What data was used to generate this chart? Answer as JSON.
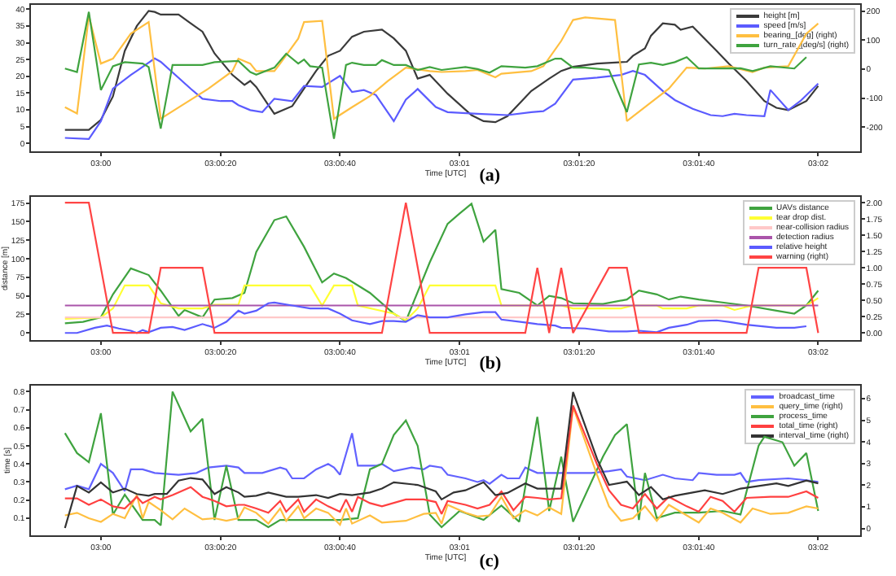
{
  "chart_data": [
    {
      "type": "line",
      "title": "(a)",
      "xlabel": "Time [UTC]",
      "legend": "top right",
      "xlim": [
        2.99675,
        3.03528
      ],
      "xticks": [
        {
          "value": 3,
          "label": "03:00"
        },
        {
          "value": 3.00556,
          "label": "03:00:20"
        },
        {
          "value": 3.01111,
          "label": "03:00:40"
        },
        {
          "value": 3.01667,
          "label": "03:01"
        },
        {
          "value": 3.02222,
          "label": "03:01:20"
        },
        {
          "value": 3.02778,
          "label": "03:01:40"
        },
        {
          "value": 3.03333,
          "label": "03:02"
        }
      ],
      "ylim": [
        -2.4,
        41.3
      ],
      "yticks": [
        0,
        5,
        10,
        15,
        20,
        25,
        30,
        35,
        40
      ],
      "y2lim": [
        -283,
        221
      ],
      "y2ticks": [
        -200,
        -100,
        0,
        100,
        200
      ],
      "series": [
        {
          "name": "height [m]",
          "color": "#3a3a3a",
          "x": [
            2.99833,
            2.99944,
            3,
            3.00056,
            3.00111,
            3.00167,
            3.00222,
            3.0025,
            3.00278,
            3.00361,
            3.00417,
            3.00472,
            3.00528,
            3.00611,
            3.00667,
            3.00694,
            3.00722,
            3.00778,
            3.00806,
            3.00889,
            3.00944,
            3.01,
            3.01056,
            3.01111,
            3.01167,
            3.01222,
            3.01306,
            3.01361,
            3.01417,
            3.01472,
            3.01528,
            3.01611,
            3.01722,
            3.01778,
            3.01833,
            3.01889,
            3.02,
            3.02083,
            3.02139,
            3.02194,
            3.02306,
            3.02444,
            3.02472,
            3.02528,
            3.02556,
            3.02611,
            3.02667,
            3.02694,
            3.0275,
            3.02861,
            3.02917,
            3.03,
            3.03083,
            3.03139,
            3.03194,
            3.03278,
            3.03333
          ],
          "values": [
            4.0,
            4.0,
            7,
            14,
            27.6,
            35,
            39.5,
            39.2,
            38.4,
            38.4,
            35.8,
            33.3,
            26.8,
            20.4,
            17.4,
            18.6,
            16.8,
            11.4,
            8.8,
            11.1,
            16.3,
            21.6,
            26.1,
            27.6,
            31.8,
            33.3,
            33.9,
            31.3,
            27.6,
            19.3,
            20.4,
            14.8,
            8.4,
            6.6,
            6.3,
            8.1,
            15.6,
            19.3,
            21.6,
            22.8,
            23.8,
            24.3,
            26.1,
            28.3,
            32.1,
            35.8,
            35.4,
            33.9,
            34.8,
            27.6,
            23.8,
            18.6,
            12.6,
            10.6,
            9.9,
            12.6,
            17.1
          ]
        },
        {
          "name": "speed [m/s]",
          "color": "#5b5bff",
          "x": [
            2.99833,
            2.99944,
            3,
            3.00056,
            3.00139,
            3.00167,
            3.0025,
            3.00278,
            3.00417,
            3.00472,
            3.00556,
            3.00611,
            3.00639,
            3.00694,
            3.0075,
            3.00806,
            3.00889,
            3.00944,
            3.01028,
            3.01111,
            3.01167,
            3.01222,
            3.01278,
            3.01361,
            3.01417,
            3.01472,
            3.01556,
            3.01611,
            3.0175,
            3.01889,
            3.02,
            3.02056,
            3.02111,
            3.02194,
            3.02306,
            3.02417,
            3.02472,
            3.02528,
            3.02611,
            3.02667,
            3.0275,
            3.02833,
            3.02889,
            3.02944,
            3.03,
            3.03083,
            3.03111,
            3.03194,
            3.0325,
            3.03333
          ],
          "values": [
            1.6,
            1.3,
            6.6,
            16.3,
            20.4,
            21.6,
            25.3,
            24.3,
            16.3,
            13.3,
            12.6,
            12.6,
            11.4,
            9.9,
            9.3,
            13.3,
            12.6,
            17.1,
            16.8,
            20.1,
            15.3,
            15.9,
            14.4,
            6.6,
            13.0,
            16.2,
            10.8,
            9.3,
            8.8,
            8.4,
            9.3,
            9.6,
            11.8,
            19.0,
            19.6,
            20.4,
            21.6,
            20.4,
            15.6,
            12.9,
            10.3,
            8.4,
            8.1,
            8.8,
            8.4,
            8.1,
            15.9,
            9.9,
            12.6,
            17.8
          ]
        },
        {
          "name": "bearing_[deg] (right)",
          "color": "#ffbf40",
          "axis": "y2",
          "x": [
            2.99833,
            2.99889,
            2.99944,
            3,
            3.00056,
            3.00139,
            3.00222,
            3.00278,
            3.00389,
            3.005,
            3.00611,
            3.00639,
            3.00694,
            3.00722,
            3.00806,
            3.00833,
            3.00917,
            3.00944,
            3.01028,
            3.01083,
            3.01167,
            3.0125,
            3.01333,
            3.01417,
            3.01528,
            3.01583,
            3.01694,
            3.0175,
            3.01833,
            3.01861,
            3.02,
            3.02056,
            3.02139,
            3.02194,
            3.0225,
            3.02389,
            3.02444,
            3.02528,
            3.02639,
            3.02722,
            3.02806,
            3.02917,
            3.03028,
            3.03083,
            3.03194,
            3.03278,
            3.03333
          ],
          "values": [
            -131,
            -153,
            183,
            19,
            36,
            122,
            162,
            -171,
            -119,
            -67,
            -7,
            36,
            19,
            -7,
            -7,
            19,
            105,
            162,
            166,
            -171,
            -131,
            -93,
            -41,
            5,
            -7,
            -10,
            -7,
            -3,
            -28,
            -16,
            -7,
            10,
            97,
            169,
            178,
            169,
            -179,
            -131,
            -67,
            5,
            2,
            10,
            -10,
            5,
            10,
            122,
            157
          ]
        },
        {
          "name": "turn_rate_[deg/s] (right)",
          "color": "#3fa33f",
          "axis": "y2",
          "x": [
            2.99833,
            2.99889,
            2.99944,
            3,
            3.00056,
            3.00111,
            3.00194,
            3.00222,
            3.00278,
            3.00333,
            3.00472,
            3.00528,
            3.00639,
            3.00694,
            3.00722,
            3.00806,
            3.00861,
            3.00917,
            3.00944,
            3.00972,
            3.01028,
            3.01083,
            3.01139,
            3.01167,
            3.01222,
            3.01278,
            3.01306,
            3.01361,
            3.01417,
            3.01472,
            3.01528,
            3.01583,
            3.01694,
            3.0175,
            3.01806,
            3.01861,
            3.01972,
            3.02028,
            3.02111,
            3.02139,
            3.02194,
            3.0225,
            3.02361,
            3.02444,
            3.025,
            3.02556,
            3.02611,
            3.02667,
            3.02722,
            3.02778,
            3.02889,
            3.02972,
            3.03028,
            3.03111,
            3.03222,
            3.03278
          ],
          "values": [
            2,
            -10,
            197,
            -72,
            10,
            24,
            19,
            7,
            -205,
            14,
            14,
            24,
            28,
            -10,
            -19,
            5,
            53,
            19,
            33,
            10,
            5,
            -240,
            14,
            22,
            14,
            14,
            31,
            14,
            14,
            -3,
            7,
            -3,
            7,
            0,
            -12,
            10,
            5,
            10,
            36,
            36,
            5,
            5,
            -3,
            -148,
            16,
            22,
            14,
            24,
            41,
            2,
            2,
            3,
            -7,
            10,
            2,
            41
          ]
        }
      ]
    },
    {
      "type": "line",
      "title": "(b)",
      "xlabel": "Time [UTC]",
      "ylabel": "distance [m]",
      "legend": "top right",
      "xlim": [
        2.99675,
        3.03528
      ],
      "xticks": [
        {
          "value": 3,
          "label": "03:00"
        },
        {
          "value": 3.00556,
          "label": "03:00:20"
        },
        {
          "value": 3.01111,
          "label": "03:00:40"
        },
        {
          "value": 3.01667,
          "label": "03:01"
        },
        {
          "value": 3.02222,
          "label": "03:01:20"
        },
        {
          "value": 3.02778,
          "label": "03:01:40"
        },
        {
          "value": 3.03333,
          "label": "03:02"
        }
      ],
      "ylim": [
        -9.6,
        183.3
      ],
      "yticks": [
        0,
        25,
        50,
        75,
        100,
        125,
        150,
        175
      ],
      "y2lim": [
        -0.11,
        2.09
      ],
      "y2ticks": [
        {
          "value": 0,
          "label": "0.00"
        },
        {
          "value": 0.25,
          "label": "0.25"
        },
        {
          "value": 0.5,
          "label": "0.50"
        },
        {
          "value": 0.75,
          "label": "0.75"
        },
        {
          "value": 1,
          "label": "1.00"
        },
        {
          "value": 1.25,
          "label": "1.25"
        },
        {
          "value": 1.5,
          "label": "1.50"
        },
        {
          "value": 1.75,
          "label": "1.75"
        },
        {
          "value": 2,
          "label": "2.00"
        }
      ],
      "series": [
        {
          "name": "UAVs distance",
          "color": "#3fa33f",
          "x": [
            2.99833,
            2.99917,
            3,
            3.00056,
            3.00139,
            3.00222,
            3.00278,
            3.00361,
            3.00389,
            3.00472,
            3.00528,
            3.00611,
            3.00667,
            3.00722,
            3.00806,
            3.00861,
            3.00944,
            3.01028,
            3.01083,
            3.01139,
            3.0125,
            3.01361,
            3.01417,
            3.01528,
            3.01611,
            3.01667,
            3.01722,
            3.01778,
            3.01833,
            3.01861,
            3.01944,
            3.02028,
            3.02083,
            3.02139,
            3.02194,
            3.02333,
            3.02444,
            3.025,
            3.02583,
            3.02639,
            3.02694,
            3.02778,
            3.02917,
            3.03,
            3.03139,
            3.03222,
            3.03278,
            3.03333
          ],
          "values": [
            13,
            15,
            21,
            52,
            87,
            78,
            57,
            23,
            31,
            21,
            45,
            47,
            54,
            109,
            152,
            157,
            116,
            68,
            80,
            74,
            54,
            26,
            16,
            95,
            147,
            161,
            174,
            123,
            139,
            59,
            54,
            37,
            50,
            47,
            40,
            39,
            45,
            57,
            52,
            45,
            49,
            45,
            40,
            37,
            30,
            26,
            37,
            57
          ]
        },
        {
          "name": "tear drop dist.",
          "color": "#ffff33",
          "x": [
            2.99833,
            3,
            3.00056,
            3.00111,
            3.00222,
            3.00278,
            3.00361,
            3.00472,
            3.00528,
            3.00639,
            3.00667,
            3.00972,
            3.01028,
            3.01083,
            3.01167,
            3.01194,
            3.01361,
            3.01417,
            3.01472,
            3.01528,
            3.01833,
            3.01861,
            3.02139,
            3.02194,
            3.02417,
            3.02472,
            3.02583,
            3.02611,
            3.02722,
            3.02778,
            3.02889,
            3.02944,
            3.03028,
            3.03278,
            3.03333
          ],
          "values": [
            19,
            21,
            33,
            64,
            64,
            40,
            33,
            33,
            38,
            38,
            64,
            64,
            37,
            64,
            64,
            37,
            26,
            17,
            33,
            64,
            64,
            37,
            37,
            33,
            33,
            37,
            37,
            33,
            33,
            37,
            37,
            31,
            37,
            37,
            47
          ]
        },
        {
          "name": "near-collision radius",
          "color": "#ffc8c8",
          "x": [
            2.99833,
            3.03333
          ],
          "values": [
            21,
            21
          ]
        },
        {
          "name": "detection radius",
          "color": "#aa55aa",
          "x": [
            2.99833,
            3.03333
          ],
          "values": [
            37,
            37
          ]
        },
        {
          "name": "relative height",
          "color": "#5b5bff",
          "x": [
            2.99833,
            2.99889,
            2.99972,
            3.00028,
            3.00083,
            3.00139,
            3.00167,
            3.00194,
            3.00222,
            3.00278,
            3.00333,
            3.00389,
            3.00472,
            3.00528,
            3.00583,
            3.00639,
            3.00667,
            3.00722,
            3.00778,
            3.00806,
            3.00889,
            3.00972,
            3.01056,
            3.01111,
            3.01167,
            3.0125,
            3.01306,
            3.01361,
            3.01417,
            3.01472,
            3.01528,
            3.01611,
            3.01694,
            3.01778,
            3.01833,
            3.01861,
            3.01972,
            3.02028,
            3.02111,
            3.02139,
            3.0225,
            3.02361,
            3.02444,
            3.025,
            3.02583,
            3.02639,
            3.02722,
            3.02778,
            3.02861,
            3.02917,
            3.03,
            3.03139,
            3.03222,
            3.03278
          ],
          "values": [
            0,
            0,
            7,
            10,
            6,
            3,
            0,
            4,
            1,
            7,
            8,
            4,
            12,
            7,
            15,
            30,
            26,
            30,
            40,
            41,
            37,
            33,
            33,
            26,
            17,
            12,
            16,
            16,
            15,
            24,
            21,
            21,
            25,
            28,
            28,
            18,
            14,
            12,
            10,
            7,
            6,
            2,
            2,
            3,
            1,
            7,
            11,
            16,
            17,
            15,
            11,
            7,
            7,
            9
          ]
        },
        {
          "name": "warning (right)",
          "color": "#ff4444",
          "axis": "y2",
          "x": [
            2.99833,
            2.99944,
            3.00056,
            3.00222,
            3.00278,
            3.00472,
            3.00528,
            3.01306,
            3.01417,
            3.01528,
            3.01972,
            3.02028,
            3.02083,
            3.02139,
            3.02194,
            3.02361,
            3.02444,
            3.025,
            3.03,
            3.03056,
            3.03278,
            3.03333
          ],
          "values": [
            2,
            2,
            0,
            0,
            1,
            1,
            0,
            0,
            2,
            0,
            0,
            1,
            0,
            1,
            0,
            1,
            1,
            0,
            0,
            1,
            1,
            0
          ]
        }
      ]
    },
    {
      "type": "line",
      "title": "(c)",
      "xlabel": "Time [UTC]",
      "ylabel": "time [s]",
      "legend": "top right",
      "xlim": [
        2.99675,
        3.03528
      ],
      "xticks": [
        {
          "value": 3,
          "label": "03:00"
        },
        {
          "value": 3.00556,
          "label": "03:00:20"
        },
        {
          "value": 3.01111,
          "label": "03:00:40"
        },
        {
          "value": 3.01667,
          "label": "03:01"
        },
        {
          "value": 3.02222,
          "label": "03:01:20"
        },
        {
          "value": 3.02778,
          "label": "03:01:40"
        },
        {
          "value": 3.03333,
          "label": "03:02"
        }
      ],
      "ylim": [
        0.005,
        0.833
      ],
      "yticks": [
        0.1,
        0.2,
        0.3,
        0.4,
        0.5,
        0.6,
        0.7,
        0.8
      ],
      "y2lim": [
        -0.32,
        6.6
      ],
      "y2ticks": [
        0,
        1,
        2,
        3,
        4,
        5,
        6
      ],
      "series": [
        {
          "name": "broadcast_time",
          "color": "#6262ff",
          "x": [
            2.99833,
            2.99889,
            2.99944,
            3,
            3.00056,
            3.00111,
            3.00139,
            3.00194,
            3.0025,
            3.00361,
            3.00444,
            3.005,
            3.00583,
            3.00639,
            3.00667,
            3.0075,
            3.00833,
            3.00861,
            3.00889,
            3.00944,
            3.01,
            3.01056,
            3.01083,
            3.01111,
            3.01167,
            3.01194,
            3.01278,
            3.01306,
            3.01361,
            3.01444,
            3.015,
            3.01528,
            3.01583,
            3.01611,
            3.01694,
            3.0175,
            3.01778,
            3.01806,
            3.01861,
            3.01889,
            3.01944,
            3.01972,
            3.02028,
            3.02139,
            3.02278,
            3.02361,
            3.02417,
            3.02444,
            3.02528,
            3.02611,
            3.02667,
            3.0275,
            3.02778,
            3.02861,
            3.02944,
            3.02972,
            3.03,
            3.03056,
            3.03194,
            3.03278,
            3.03333
          ],
          "values": [
            0.26,
            0.28,
            0.26,
            0.4,
            0.35,
            0.25,
            0.37,
            0.37,
            0.35,
            0.34,
            0.35,
            0.38,
            0.39,
            0.38,
            0.35,
            0.35,
            0.38,
            0.37,
            0.32,
            0.32,
            0.37,
            0.4,
            0.38,
            0.34,
            0.57,
            0.39,
            0.39,
            0.4,
            0.36,
            0.38,
            0.37,
            0.39,
            0.38,
            0.34,
            0.32,
            0.3,
            0.31,
            0.29,
            0.34,
            0.32,
            0.32,
            0.38,
            0.35,
            0.35,
            0.35,
            0.36,
            0.37,
            0.33,
            0.31,
            0.34,
            0.32,
            0.31,
            0.35,
            0.34,
            0.34,
            0.35,
            0.3,
            0.31,
            0.32,
            0.31,
            0.3
          ]
        },
        {
          "name": "query_time (right)",
          "color": "#ffbf40",
          "axis": "y2",
          "x": [
            2.99833,
            2.99889,
            2.99944,
            3,
            3.00056,
            3.00111,
            3.00167,
            3.00194,
            3.00222,
            3.00278,
            3.00333,
            3.00389,
            3.00472,
            3.00528,
            3.00583,
            3.00639,
            3.00667,
            3.00722,
            3.00778,
            3.00833,
            3.00861,
            3.00917,
            3.00944,
            3.01,
            3.01056,
            3.01111,
            3.01139,
            3.01167,
            3.0125,
            3.01306,
            3.01417,
            3.015,
            3.01556,
            3.01583,
            3.01611,
            3.01694,
            3.0175,
            3.01806,
            3.01861,
            3.01917,
            3.01972,
            3.02028,
            3.02083,
            3.02139,
            3.02194,
            3.02306,
            3.02361,
            3.02417,
            3.02472,
            3.02528,
            3.02583,
            3.02639,
            3.02722,
            3.02778,
            3.02833,
            3.02889,
            3.02944,
            3.02972,
            3.03028,
            3.03111,
            3.03194,
            3.0325,
            3.03278,
            3.03333
          ],
          "values": [
            0.6,
            0.72,
            0.47,
            0.3,
            0.67,
            0.47,
            1.54,
            0.47,
            1.22,
            0.84,
            0.42,
            0.92,
            0.42,
            0.47,
            0.35,
            0.47,
            0.97,
            0.72,
            0.22,
            0.92,
            0.35,
            1.02,
            0.47,
            0.92,
            0.72,
            0.17,
            0.92,
            0.22,
            0.6,
            0.27,
            0.35,
            0.67,
            0.72,
            0.22,
            1.09,
            0.72,
            0.55,
            0.6,
            1.46,
            0.47,
            0.84,
            0.6,
            0.97,
            0.67,
            5.61,
            2.46,
            1.02,
            0.35,
            0.47,
            1.02,
            0.35,
            1.09,
            0.6,
            0.27,
            0.92,
            0.72,
            0.42,
            0.27,
            0.92,
            0.67,
            0.72,
            0.92,
            1.02,
            0.92
          ]
        },
        {
          "name": "process_time",
          "color": "#3fa33f",
          "x": [
            2.99833,
            2.99889,
            2.99944,
            3,
            3.00056,
            3.00111,
            3.00194,
            3.0025,
            3.00278,
            3.00333,
            3.00417,
            3.00472,
            3.00528,
            3.00583,
            3.00639,
            3.00722,
            3.00778,
            3.00833,
            3.00889,
            3.01,
            3.01111,
            3.01194,
            3.0125,
            3.01306,
            3.01361,
            3.01417,
            3.01472,
            3.01528,
            3.01583,
            3.01667,
            3.01778,
            3.01861,
            3.01944,
            3.02028,
            3.02083,
            3.02139,
            3.02194,
            3.02333,
            3.02389,
            3.02444,
            3.025,
            3.02528,
            3.02583,
            3.02667,
            3.02778,
            3.02889,
            3.02972,
            3.03056,
            3.03083,
            3.03167,
            3.03222,
            3.03278,
            3.03333
          ],
          "values": [
            0.57,
            0.46,
            0.41,
            0.68,
            0.12,
            0.23,
            0.09,
            0.09,
            0.06,
            0.8,
            0.58,
            0.65,
            0.09,
            0.39,
            0.09,
            0.09,
            0.05,
            0.09,
            0.09,
            0.09,
            0.09,
            0.1,
            0.37,
            0.4,
            0.56,
            0.64,
            0.5,
            0.12,
            0.05,
            0.14,
            0.09,
            0.17,
            0.08,
            0.66,
            0.14,
            0.44,
            0.08,
            0.44,
            0.56,
            0.62,
            0.09,
            0.35,
            0.1,
            0.13,
            0.13,
            0.14,
            0.12,
            0.5,
            0.55,
            0.52,
            0.39,
            0.46,
            0.14
          ]
        },
        {
          "name": "total_time (right)",
          "color": "#ff4040",
          "axis": "y2",
          "x": [
            2.99833,
            2.99889,
            2.99944,
            3,
            3.00056,
            3.00111,
            3.00167,
            3.00194,
            3.0025,
            3.00278,
            3.00333,
            3.00417,
            3.00472,
            3.00528,
            3.00583,
            3.00639,
            3.00667,
            3.00722,
            3.00778,
            3.00833,
            3.00861,
            3.00917,
            3.00944,
            3.01,
            3.01056,
            3.01111,
            3.01139,
            3.01167,
            3.01194,
            3.0125,
            3.01306,
            3.01417,
            3.015,
            3.01556,
            3.01583,
            3.01611,
            3.01694,
            3.0175,
            3.01806,
            3.01861,
            3.01917,
            3.01972,
            3.02028,
            3.02083,
            3.02139,
            3.02194,
            3.02306,
            3.02361,
            3.02417,
            3.02472,
            3.02528,
            3.02583,
            3.02639,
            3.02722,
            3.02778,
            3.02833,
            3.02889,
            3.02944,
            3.03,
            3.03111,
            3.03194,
            3.03278,
            3.03333
          ],
          "values": [
            1.39,
            1.39,
            1.09,
            1.34,
            1.02,
            0.92,
            1.46,
            1.17,
            1.46,
            1.34,
            1.54,
            1.91,
            1.46,
            1.27,
            1.02,
            1.09,
            1.09,
            0.92,
            0.72,
            1.27,
            0.77,
            1.34,
            0.77,
            1.34,
            1.02,
            0.77,
            1.34,
            0.77,
            1.46,
            1.17,
            1.02,
            1.34,
            1.34,
            1.22,
            0.67,
            1.27,
            1.09,
            0.92,
            1.09,
            1.71,
            0.84,
            1.46,
            1.41,
            1.34,
            1.39,
            5.68,
            2.95,
            1.76,
            1.09,
            0.92,
            1.59,
            0.92,
            1.46,
            1.02,
            0.77,
            1.46,
            1.27,
            0.77,
            1.41,
            1.46,
            1.46,
            1.71,
            1.41
          ]
        },
        {
          "name": "interval_time (right)",
          "color": "#333333",
          "axis": "y2",
          "x": [
            2.99833,
            2.99889,
            2.99944,
            3,
            3.00056,
            3.00111,
            3.00167,
            3.00222,
            3.0025,
            3.00306,
            3.00361,
            3.00417,
            3.00472,
            3.00528,
            3.00583,
            3.00639,
            3.00667,
            3.00722,
            3.00778,
            3.00861,
            3.00917,
            3.01,
            3.01056,
            3.01111,
            3.01167,
            3.0125,
            3.01306,
            3.01361,
            3.01472,
            3.01556,
            3.01583,
            3.01639,
            3.01694,
            3.01778,
            3.01833,
            3.01889,
            3.01972,
            3.02028,
            3.02083,
            3.02139,
            3.02194,
            3.02306,
            3.02361,
            3.02444,
            3.025,
            3.02556,
            3.02611,
            3.02667,
            3.0275,
            3.02806,
            3.02889,
            3.02972,
            3.03056,
            3.03139,
            3.03194,
            3.03278,
            3.03333
          ],
          "values": [
            0.02,
            1.96,
            1.66,
            2.13,
            1.66,
            1.84,
            1.59,
            1.51,
            1.59,
            1.59,
            2.21,
            2.33,
            2.26,
            1.59,
            1.91,
            1.66,
            1.46,
            1.51,
            1.66,
            1.46,
            1.46,
            1.54,
            1.41,
            1.59,
            1.54,
            1.66,
            1.84,
            2.13,
            2.01,
            1.71,
            1.34,
            1.66,
            1.76,
            2.13,
            1.54,
            1.64,
            2.08,
            1.84,
            1.84,
            1.84,
            6.3,
            3.2,
            2.01,
            2.16,
            1.54,
            1.91,
            1.34,
            1.51,
            1.66,
            1.76,
            1.59,
            1.84,
            1.96,
            2.08,
            1.96,
            2.21,
            2.08
          ]
        }
      ]
    }
  ]
}
